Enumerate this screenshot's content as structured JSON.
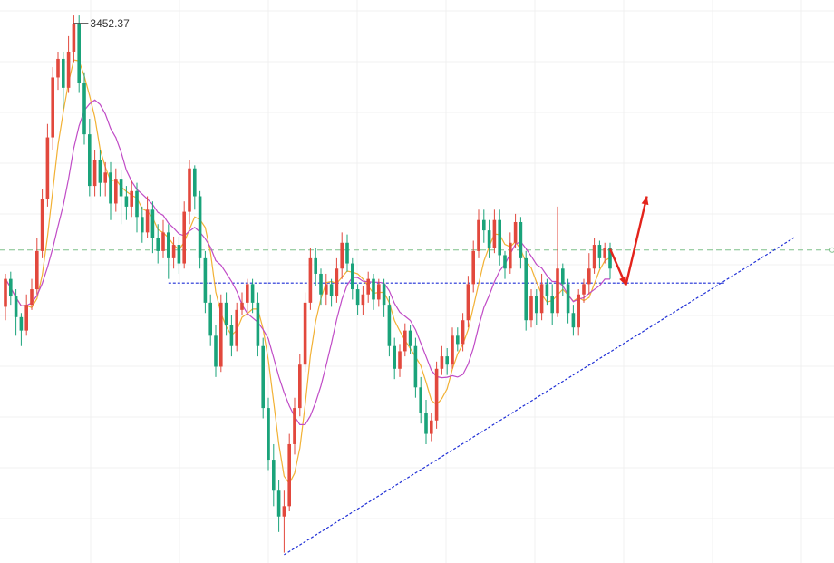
{
  "chart_data": {
    "type": "candlestick",
    "title": "",
    "xlabel": "",
    "ylabel": "",
    "ylim": [
      2930,
      3475
    ],
    "grid": true,
    "peak_annotation": {
      "label": "3452.37",
      "value": 3452.37
    },
    "colors": {
      "up": "#e2483d",
      "down": "#1aa37a",
      "ma_short": "#f2b134",
      "ma_long": "#c04bc6",
      "grid": "#f0f0f0",
      "resistance": "#1f2fd6",
      "trendline": "#1f2fd6",
      "reference_dashed": "#7fc08a",
      "arrow": "#e3231b"
    },
    "horizontal_line": {
      "value": 3201,
      "style": "dotted",
      "from_index": 31,
      "to_index": 137
    },
    "reference_line": {
      "value": 3233,
      "style": "dashed"
    },
    "trendline": {
      "from": {
        "index": 53,
        "value": 2938
      },
      "to": {
        "index": 150,
        "value": 3245
      }
    },
    "arrows": [
      {
        "from": {
          "index": 115,
          "value": 3234
        },
        "to": {
          "index": 118,
          "value": 3199
        }
      },
      {
        "from": {
          "index": 118,
          "value": 3199
        },
        "to": {
          "index": 122,
          "value": 3285
        }
      }
    ],
    "candles": [
      [
        3178,
        3205,
        3165,
        3210
      ],
      [
        3205,
        3188,
        3180,
        3212
      ],
      [
        3188,
        3168,
        3150,
        3195
      ],
      [
        3168,
        3155,
        3140,
        3172
      ],
      [
        3155,
        3180,
        3150,
        3190
      ],
      [
        3180,
        3195,
        3175,
        3205
      ],
      [
        3195,
        3232,
        3190,
        3245
      ],
      [
        3232,
        3282,
        3225,
        3292
      ],
      [
        3282,
        3342,
        3275,
        3355
      ],
      [
        3342,
        3400,
        3330,
        3410
      ],
      [
        3400,
        3418,
        3388,
        3425
      ],
      [
        3418,
        3390,
        3370,
        3425
      ],
      [
        3390,
        3425,
        3385,
        3440
      ],
      [
        3425,
        3452,
        3415,
        3460
      ],
      [
        3452,
        3395,
        3385,
        3460
      ],
      [
        3395,
        3345,
        3335,
        3405
      ],
      [
        3345,
        3295,
        3285,
        3360
      ],
      [
        3295,
        3320,
        3285,
        3330
      ],
      [
        3320,
        3298,
        3285,
        3330
      ],
      [
        3298,
        3308,
        3285,
        3318
      ],
      [
        3308,
        3278,
        3262,
        3318
      ],
      [
        3278,
        3302,
        3270,
        3312
      ],
      [
        3302,
        3285,
        3258,
        3310
      ],
      [
        3285,
        3275,
        3262,
        3295
      ],
      [
        3275,
        3290,
        3265,
        3300
      ],
      [
        3290,
        3265,
        3250,
        3298
      ],
      [
        3265,
        3250,
        3240,
        3275
      ],
      [
        3250,
        3272,
        3245,
        3285
      ],
      [
        3272,
        3245,
        3230,
        3280
      ],
      [
        3245,
        3232,
        3220,
        3258
      ],
      [
        3232,
        3250,
        3225,
        3262
      ],
      [
        3250,
        3225,
        3205,
        3258
      ],
      [
        3225,
        3238,
        3215,
        3246
      ],
      [
        3238,
        3220,
        3210,
        3246
      ],
      [
        3220,
        3270,
        3215,
        3280
      ],
      [
        3270,
        3312,
        3258,
        3320
      ],
      [
        3312,
        3285,
        3272,
        3315
      ],
      [
        3285,
        3225,
        3215,
        3290
      ],
      [
        3225,
        3182,
        3172,
        3232
      ],
      [
        3182,
        3150,
        3140,
        3190
      ],
      [
        3150,
        3120,
        3110,
        3160
      ],
      [
        3120,
        3182,
        3115,
        3190
      ],
      [
        3182,
        3160,
        3150,
        3192
      ],
      [
        3160,
        3140,
        3130,
        3170
      ],
      [
        3140,
        3175,
        3135,
        3182
      ],
      [
        3175,
        3182,
        3170,
        3192
      ],
      [
        3182,
        3200,
        3172,
        3205
      ],
      [
        3200,
        3182,
        3172,
        3205
      ],
      [
        3182,
        3140,
        3130,
        3192
      ],
      [
        3140,
        3080,
        3070,
        3148
      ],
      [
        3080,
        3030,
        3020,
        3090
      ],
      [
        3030,
        3000,
        2985,
        3045
      ],
      [
        3000,
        2975,
        2960,
        3010
      ],
      [
        2975,
        2985,
        2940,
        3000
      ],
      [
        2985,
        3045,
        2980,
        3055
      ],
      [
        3045,
        3080,
        3035,
        3090
      ],
      [
        3080,
        3122,
        3072,
        3132
      ],
      [
        3122,
        3182,
        3115,
        3192
      ],
      [
        3182,
        3225,
        3175,
        3235
      ],
      [
        3225,
        3210,
        3198,
        3235
      ],
      [
        3210,
        3190,
        3180,
        3215
      ],
      [
        3190,
        3200,
        3180,
        3210
      ],
      [
        3200,
        3188,
        3178,
        3205
      ],
      [
        3188,
        3215,
        3182,
        3225
      ],
      [
        3215,
        3240,
        3205,
        3250
      ],
      [
        3240,
        3220,
        3212,
        3248
      ],
      [
        3220,
        3195,
        3185,
        3225
      ],
      [
        3195,
        3180,
        3170,
        3200
      ],
      [
        3180,
        3190,
        3170,
        3198
      ],
      [
        3190,
        3205,
        3182,
        3212
      ],
      [
        3205,
        3185,
        3175,
        3210
      ],
      [
        3185,
        3200,
        3178,
        3205
      ],
      [
        3200,
        3180,
        3168,
        3205
      ],
      [
        3180,
        3140,
        3130,
        3188
      ],
      [
        3140,
        3118,
        3108,
        3148
      ],
      [
        3118,
        3135,
        3110,
        3142
      ],
      [
        3135,
        3155,
        3130,
        3162
      ],
      [
        3155,
        3140,
        3132,
        3160
      ],
      [
        3140,
        3100,
        3090,
        3148
      ],
      [
        3100,
        3075,
        3065,
        3110
      ],
      [
        3075,
        3055,
        3045,
        3088
      ],
      [
        3055,
        3068,
        3048,
        3075
      ],
      [
        3068,
        3118,
        3060,
        3125
      ],
      [
        3118,
        3130,
        3112,
        3140
      ],
      [
        3130,
        3122,
        3112,
        3138
      ],
      [
        3122,
        3150,
        3118,
        3158
      ],
      [
        3150,
        3142,
        3135,
        3158
      ],
      [
        3142,
        3165,
        3135,
        3172
      ],
      [
        3165,
        3200,
        3158,
        3208
      ],
      [
        3200,
        3232,
        3192,
        3242
      ],
      [
        3232,
        3262,
        3225,
        3272
      ],
      [
        3262,
        3252,
        3240,
        3272
      ],
      [
        3252,
        3235,
        3225,
        3262
      ],
      [
        3235,
        3262,
        3230,
        3272
      ],
      [
        3262,
        3228,
        3218,
        3272
      ],
      [
        3228,
        3215,
        3205,
        3232
      ],
      [
        3215,
        3240,
        3210,
        3250
      ],
      [
        3240,
        3260,
        3235,
        3268
      ],
      [
        3260,
        3225,
        3215,
        3265
      ],
      [
        3225,
        3165,
        3155,
        3232
      ],
      [
        3165,
        3188,
        3158,
        3195
      ],
      [
        3188,
        3172,
        3160,
        3195
      ],
      [
        3172,
        3200,
        3165,
        3210
      ],
      [
        3200,
        3188,
        3180,
        3205
      ],
      [
        3188,
        3172,
        3160,
        3200
      ],
      [
        3172,
        3215,
        3168,
        3275
      ],
      [
        3215,
        3200,
        3188,
        3220
      ],
      [
        3200,
        3172,
        3162,
        3205
      ],
      [
        3172,
        3158,
        3150,
        3180
      ],
      [
        3158,
        3190,
        3150,
        3195
      ],
      [
        3190,
        3200,
        3182,
        3205
      ],
      [
        3200,
        3215,
        3190,
        3230
      ],
      [
        3215,
        3238,
        3210,
        3245
      ],
      [
        3238,
        3225,
        3215,
        3242
      ],
      [
        3225,
        3235,
        3220,
        3240
      ],
      [
        3235,
        3215,
        3205,
        3240
      ]
    ]
  }
}
